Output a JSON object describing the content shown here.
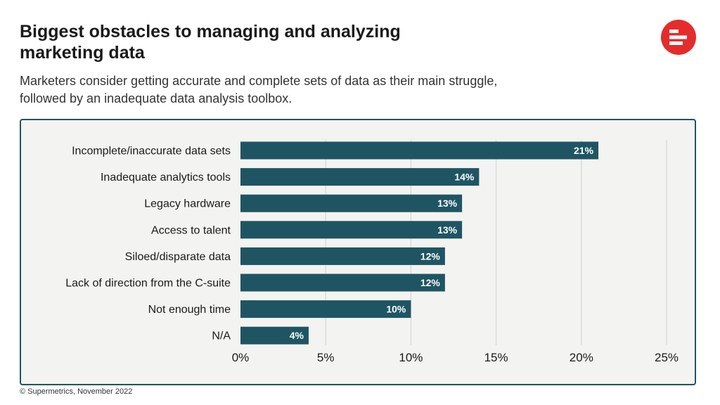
{
  "header": {
    "title": "Biggest obstacles to managing and analyzing marketing data",
    "subtitle": "Marketers consider getting accurate and complete sets of data as their main struggle, followed by an inadequate data analysis toolbox."
  },
  "brand": {
    "logo_icon": "supermetrics-logo-icon",
    "color": "#e42c2c"
  },
  "footer": {
    "source": "© Supermetrics, November 2022"
  },
  "colors": {
    "bar": "#1f5563",
    "panel_bg": "#f3f3f1",
    "grid": "#d0d0d0"
  },
  "chart_data": {
    "type": "bar",
    "orientation": "horizontal",
    "categories": [
      "Incomplete/inaccurate data sets",
      "Inadequate analytics tools",
      "Legacy hardware",
      "Access to talent",
      "Siloed/disparate data",
      "Lack of direction from the C-suite",
      "Not enough time",
      "N/A"
    ],
    "values": [
      21,
      14,
      13,
      13,
      12,
      12,
      10,
      4
    ],
    "value_labels": [
      "21%",
      "14%",
      "13%",
      "13%",
      "12%",
      "12%",
      "10%",
      "4%"
    ],
    "xlim": [
      0,
      25
    ],
    "xticks": [
      0,
      5,
      10,
      15,
      20,
      25
    ],
    "xtick_labels": [
      "0%",
      "5%",
      "10%",
      "15%",
      "20%",
      "25%"
    ],
    "grid": true
  }
}
